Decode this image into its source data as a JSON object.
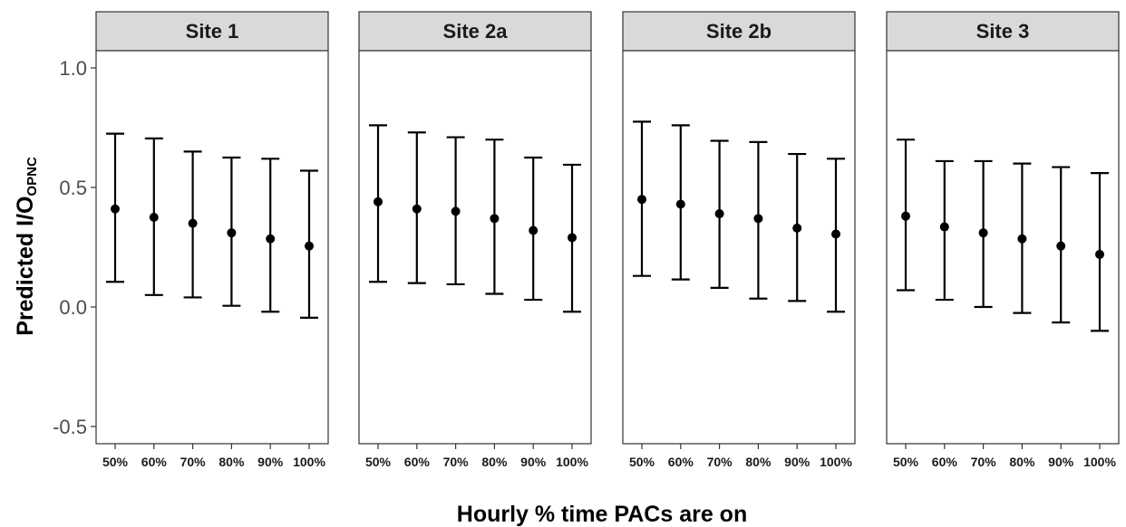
{
  "chart_data": {
    "type": "scatter",
    "subtype": "point-with-error-bars, faceted",
    "xlabel": "Hourly % time PACs are on",
    "ylabel_main": "Predicted I/O",
    "ylabel_sub": "OPNC",
    "ylim": [
      -0.55,
      1.05
    ],
    "yticks": [
      -0.5,
      0.0,
      0.5,
      1.0
    ],
    "ytick_labels": [
      "-0.5",
      "0.0",
      "0.5",
      "1.0"
    ],
    "categories": [
      "50%",
      "60%",
      "70%",
      "80%",
      "90%",
      "100%"
    ],
    "grid": false,
    "panels": [
      {
        "name": "Site 1",
        "estimate": [
          0.41,
          0.375,
          0.35,
          0.31,
          0.285,
          0.255
        ],
        "lower": [
          0.105,
          0.05,
          0.04,
          0.005,
          -0.02,
          -0.045
        ],
        "upper": [
          0.725,
          0.705,
          0.65,
          0.625,
          0.62,
          0.57
        ]
      },
      {
        "name": "Site 2a",
        "estimate": [
          0.44,
          0.41,
          0.4,
          0.37,
          0.32,
          0.29
        ],
        "lower": [
          0.105,
          0.1,
          0.095,
          0.055,
          0.03,
          -0.02
        ],
        "upper": [
          0.76,
          0.73,
          0.71,
          0.7,
          0.625,
          0.595
        ]
      },
      {
        "name": "Site 2b",
        "estimate": [
          0.45,
          0.43,
          0.39,
          0.37,
          0.33,
          0.305
        ],
        "lower": [
          0.13,
          0.115,
          0.08,
          0.035,
          0.025,
          -0.02
        ],
        "upper": [
          0.775,
          0.76,
          0.695,
          0.69,
          0.64,
          0.62
        ]
      },
      {
        "name": "Site 3",
        "estimate": [
          0.38,
          0.335,
          0.31,
          0.285,
          0.255,
          0.22
        ],
        "lower": [
          0.07,
          0.03,
          0.0,
          -0.025,
          -0.065,
          -0.1
        ],
        "upper": [
          0.7,
          0.61,
          0.61,
          0.6,
          0.585,
          0.56
        ]
      }
    ],
    "colors": {
      "points": "#000000",
      "strip_fill": "#d9d9d9",
      "panel_border": "#333333",
      "tick_text": "#4d4d4d"
    }
  }
}
